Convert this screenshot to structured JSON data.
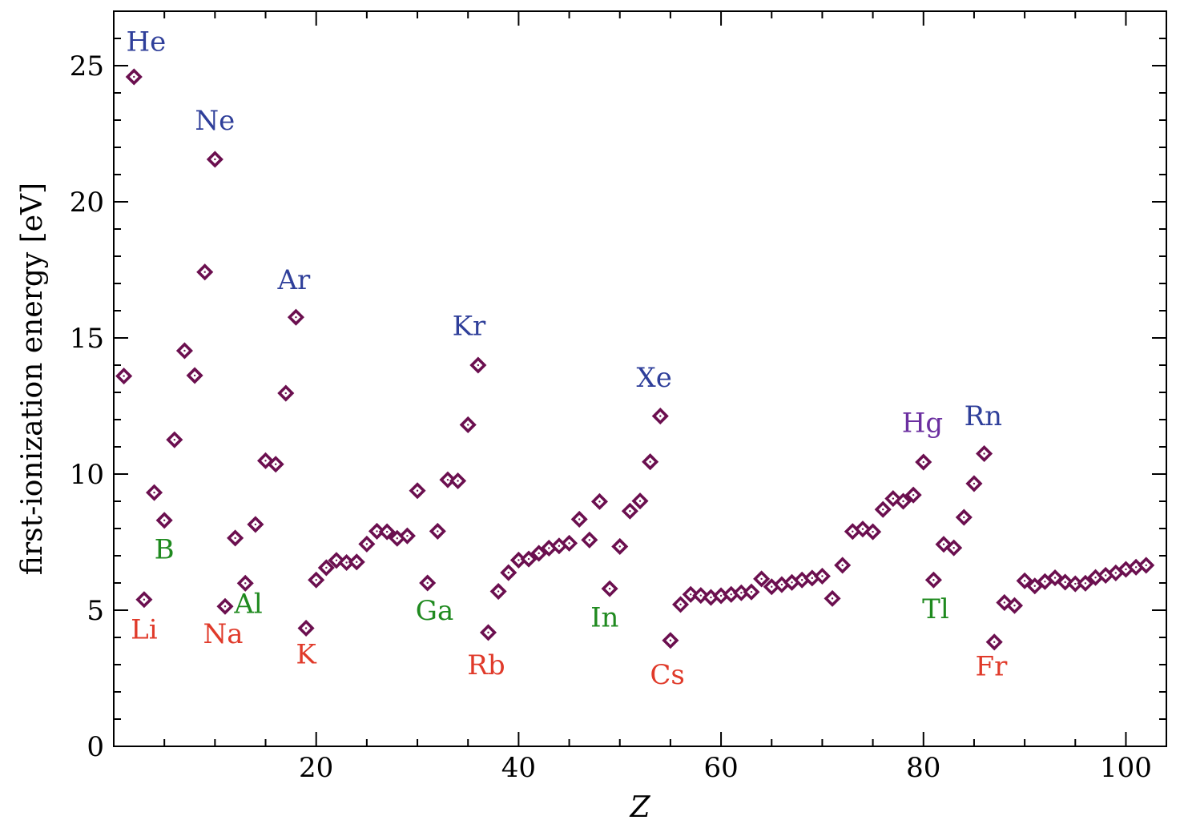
{
  "chart_data": {
    "type": "scatter",
    "xlabel": "Z",
    "ylabel": "first-ionization energy  [eV]",
    "xlim": [
      0,
      104
    ],
    "ylim": [
      0,
      27
    ],
    "x_ticks": [
      20,
      40,
      60,
      80,
      100
    ],
    "y_ticks": [
      0,
      5,
      10,
      15,
      20,
      25
    ],
    "grid": false,
    "marker": "diamond",
    "colors": {
      "marker": "#6b0f4f",
      "noble": "#2f3f9a",
      "alkali": "#e03a2a",
      "group13": "#1f8a1f",
      "mercury": "#6b2fa0"
    },
    "series": [
      {
        "x": [
          1,
          2,
          3,
          4,
          5,
          6,
          7,
          8,
          9,
          10,
          11,
          12,
          13,
          14,
          15,
          16,
          17,
          18,
          19,
          20,
          21,
          22,
          23,
          24,
          25,
          26,
          27,
          28,
          29,
          30,
          31,
          32,
          33,
          34,
          35,
          36,
          37,
          38,
          39,
          40,
          41,
          42,
          43,
          44,
          45,
          46,
          47,
          48,
          49,
          50,
          51,
          52,
          53,
          54,
          55,
          56,
          57,
          58,
          59,
          60,
          61,
          62,
          63,
          64,
          65,
          66,
          67,
          68,
          69,
          70,
          71,
          72,
          73,
          74,
          75,
          76,
          77,
          78,
          79,
          80,
          81,
          82,
          83,
          84,
          85,
          86,
          87,
          88,
          89,
          90,
          91,
          92,
          93,
          94,
          95,
          96,
          97,
          98,
          99,
          100,
          101,
          102
        ],
        "y": [
          13.6,
          24.59,
          5.39,
          9.32,
          8.3,
          11.26,
          14.53,
          13.62,
          17.42,
          21.56,
          5.14,
          7.65,
          5.99,
          8.15,
          10.49,
          10.36,
          12.97,
          15.76,
          4.34,
          6.11,
          6.56,
          6.83,
          6.75,
          6.77,
          7.43,
          7.9,
          7.88,
          7.64,
          7.73,
          9.39,
          6.0,
          7.9,
          9.79,
          9.75,
          11.81,
          14.0,
          4.18,
          5.69,
          6.38,
          6.84,
          6.88,
          7.09,
          7.28,
          7.36,
          7.46,
          8.34,
          7.58,
          8.99,
          5.79,
          7.34,
          8.64,
          9.01,
          10.45,
          12.13,
          3.89,
          5.21,
          5.58,
          5.54,
          5.47,
          5.53,
          5.58,
          5.64,
          5.67,
          6.15,
          5.86,
          5.94,
          6.02,
          6.11,
          6.18,
          6.25,
          5.43,
          6.65,
          7.89,
          7.98,
          7.88,
          8.7,
          9.1,
          9.0,
          9.23,
          10.44,
          6.11,
          7.42,
          7.29,
          8.41,
          9.65,
          10.75,
          3.83,
          5.28,
          5.17,
          6.08,
          5.89,
          6.05,
          6.19,
          6.03,
          5.97,
          5.99,
          6.2,
          6.28,
          6.37,
          6.5,
          6.58,
          6.65
        ]
      }
    ],
    "annotations": [
      {
        "text": "He",
        "x": 3.2,
        "y": 25.55,
        "group": "noble"
      },
      {
        "text": "Ne",
        "x": 10.0,
        "y": 22.65,
        "group": "noble"
      },
      {
        "text": "Ar",
        "x": 17.8,
        "y": 16.8,
        "group": "noble"
      },
      {
        "text": "Kr",
        "x": 35.1,
        "y": 15.1,
        "group": "noble"
      },
      {
        "text": "Xe",
        "x": 53.4,
        "y": 13.2,
        "group": "noble"
      },
      {
        "text": "Rn",
        "x": 85.9,
        "y": 11.8,
        "group": "noble"
      },
      {
        "text": "Hg",
        "x": 79.9,
        "y": 11.55,
        "group": "mercury"
      },
      {
        "text": "Li",
        "x": 3.0,
        "y": 3.95,
        "group": "alkali"
      },
      {
        "text": "Na",
        "x": 10.8,
        "y": 3.8,
        "group": "alkali"
      },
      {
        "text": "K",
        "x": 19.0,
        "y": 3.05,
        "group": "alkali"
      },
      {
        "text": "Rb",
        "x": 36.8,
        "y": 2.65,
        "group": "alkali"
      },
      {
        "text": "Cs",
        "x": 54.7,
        "y": 2.3,
        "group": "alkali"
      },
      {
        "text": "Fr",
        "x": 86.7,
        "y": 2.6,
        "group": "alkali"
      },
      {
        "text": "B",
        "x": 5.0,
        "y": 6.9,
        "group": "group13"
      },
      {
        "text": "Al",
        "x": 13.3,
        "y": 4.9,
        "group": "group13"
      },
      {
        "text": "Ga",
        "x": 31.7,
        "y": 4.65,
        "group": "group13"
      },
      {
        "text": "In",
        "x": 48.5,
        "y": 4.4,
        "group": "group13"
      },
      {
        "text": "Tl",
        "x": 81.2,
        "y": 4.7,
        "group": "group13"
      }
    ]
  }
}
